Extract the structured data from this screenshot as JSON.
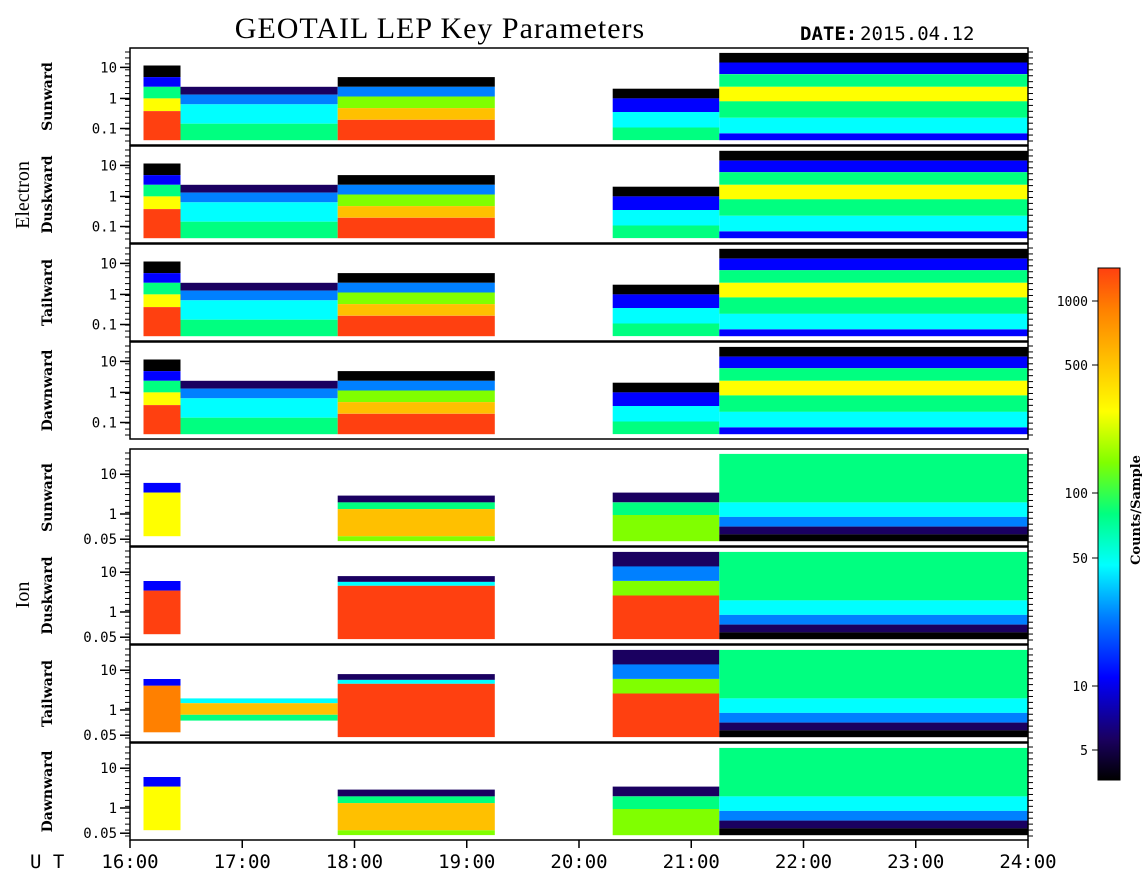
{
  "title": "GEOTAIL LEP Key Parameters",
  "date_label": "DATE:",
  "date_value": "2015.04.12",
  "x_axis": {
    "prefix": "U T",
    "ticks": [
      "16:00",
      "17:00",
      "18:00",
      "19:00",
      "20:00",
      "21:00",
      "22:00",
      "23:00",
      "24:00"
    ]
  },
  "groups": [
    {
      "name": "Electron",
      "panels": [
        "Sunward",
        "Duskward",
        "Tailward",
        "Dawnward"
      ],
      "y_ticks": [
        "10",
        "1",
        "0.1"
      ]
    },
    {
      "name": "Ion",
      "panels": [
        "Sunward",
        "Duskward",
        "Tailward",
        "Dawnward"
      ],
      "y_ticks": [
        "10",
        "1",
        "0.05"
      ]
    }
  ],
  "colorbar": {
    "title": "Counts/Sample",
    "ticks": [
      "1000",
      "500",
      "100",
      "50",
      "10",
      "5"
    ],
    "colors": [
      "#000000",
      "#1a0060",
      "#0000ff",
      "#0080ff",
      "#00ffff",
      "#00ff80",
      "#80ff00",
      "#ffff00",
      "#ffc000",
      "#ff8000",
      "#ff4010"
    ]
  },
  "chart_data": {
    "type": "heatmap",
    "title": "GEOTAIL LEP Key Parameters",
    "x_unit": "UT",
    "x_range": [
      "16:00",
      "24:00"
    ],
    "data_gap": {
      "start": "19:15",
      "end": "20:18"
    },
    "color_scale": {
      "label": "Counts/Sample",
      "type": "log",
      "range": [
        3,
        1500
      ]
    },
    "panels": [
      {
        "group": "Electron",
        "direction": "Sunward",
        "y_ticks": [
          10,
          1,
          0.1
        ],
        "y_scale": "log"
      },
      {
        "group": "Electron",
        "direction": "Duskward",
        "y_ticks": [
          10,
          1,
          0.1
        ],
        "y_scale": "log"
      },
      {
        "group": "Electron",
        "direction": "Tailward",
        "y_ticks": [
          10,
          1,
          0.1
        ],
        "y_scale": "log"
      },
      {
        "group": "Electron",
        "direction": "Dawnward",
        "y_ticks": [
          10,
          1,
          0.1
        ],
        "y_scale": "log"
      },
      {
        "group": "Ion",
        "direction": "Sunward",
        "y_ticks": [
          10,
          1,
          0.05
        ],
        "y_scale": "log"
      },
      {
        "group": "Ion",
        "direction": "Duskward",
        "y_ticks": [
          10,
          1,
          0.05
        ],
        "y_scale": "log"
      },
      {
        "group": "Ion",
        "direction": "Tailward",
        "y_ticks": [
          10,
          1,
          0.05
        ],
        "y_scale": "log"
      },
      {
        "group": "Ion",
        "direction": "Dawnward",
        "y_ticks": [
          10,
          1,
          0.05
        ],
        "y_scale": "log"
      }
    ]
  }
}
